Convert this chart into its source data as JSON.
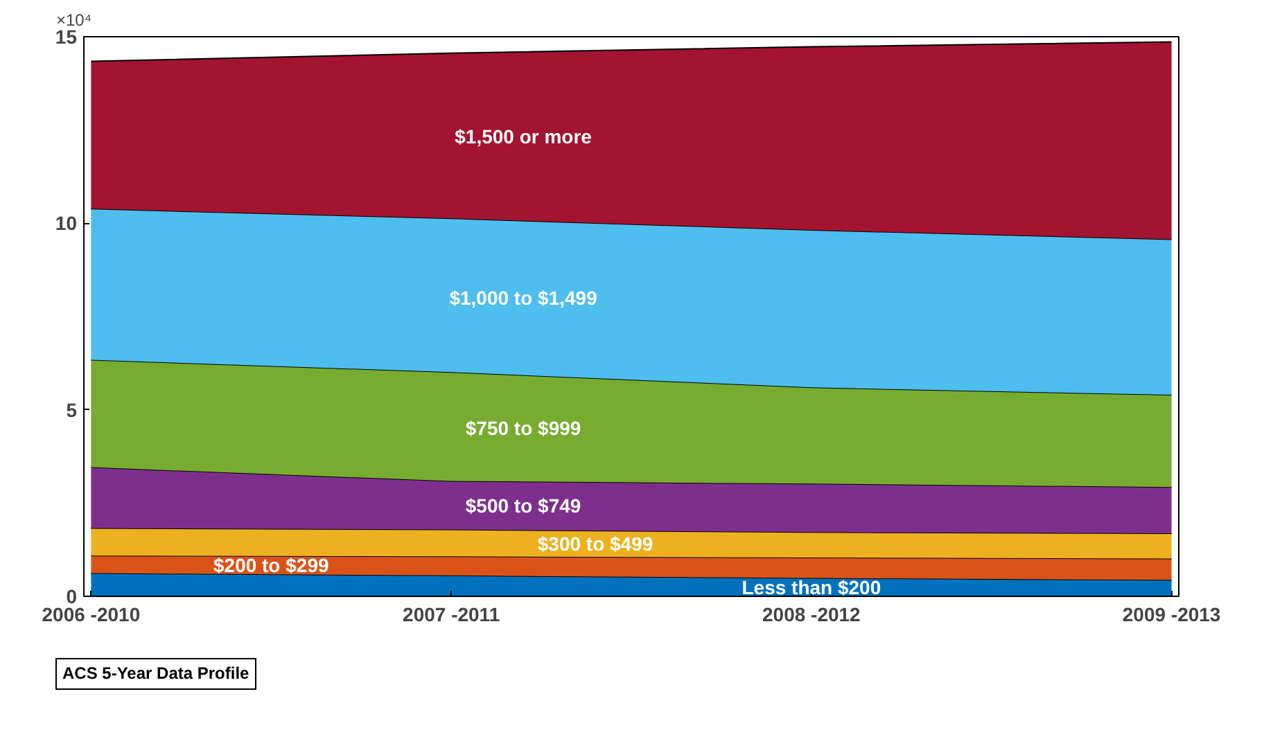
{
  "chart_data": {
    "type": "area",
    "stacked": true,
    "categories": [
      "2006 -2010",
      "2007 -2011",
      "2008 -2012",
      "2009 -2013"
    ],
    "ylim": [
      0,
      15
    ],
    "yticks": [
      0,
      5,
      10,
      15
    ],
    "series": [
      {
        "name": "Less than $200",
        "color": "#0072bd",
        "values": [
          0.62,
          0.56,
          0.49,
          0.44
        ]
      },
      {
        "name": "$200 to $299",
        "color": "#d95319",
        "values": [
          0.47,
          0.51,
          0.55,
          0.57
        ]
      },
      {
        "name": "$300 to $499",
        "color": "#edb120",
        "values": [
          0.74,
          0.72,
          0.68,
          0.68
        ]
      },
      {
        "name": "$500 to $749",
        "color": "#7e2f8e",
        "values": [
          1.63,
          1.3,
          1.3,
          1.24
        ]
      },
      {
        "name": "$750 to $999",
        "color": "#77ac30",
        "values": [
          2.88,
          2.92,
          2.58,
          2.47
        ]
      },
      {
        "name": "$1,000 to $1,499",
        "color": "#4dbeee",
        "values": [
          4.05,
          4.12,
          4.22,
          4.17
        ]
      },
      {
        "name": "$1,500 or more",
        "color": "#a2142f",
        "values": [
          3.95,
          4.43,
          4.91,
          5.29
        ]
      }
    ],
    "annotations": [
      "×10⁴",
      "ACS 5-Year Data Profile"
    ],
    "grid": false
  }
}
